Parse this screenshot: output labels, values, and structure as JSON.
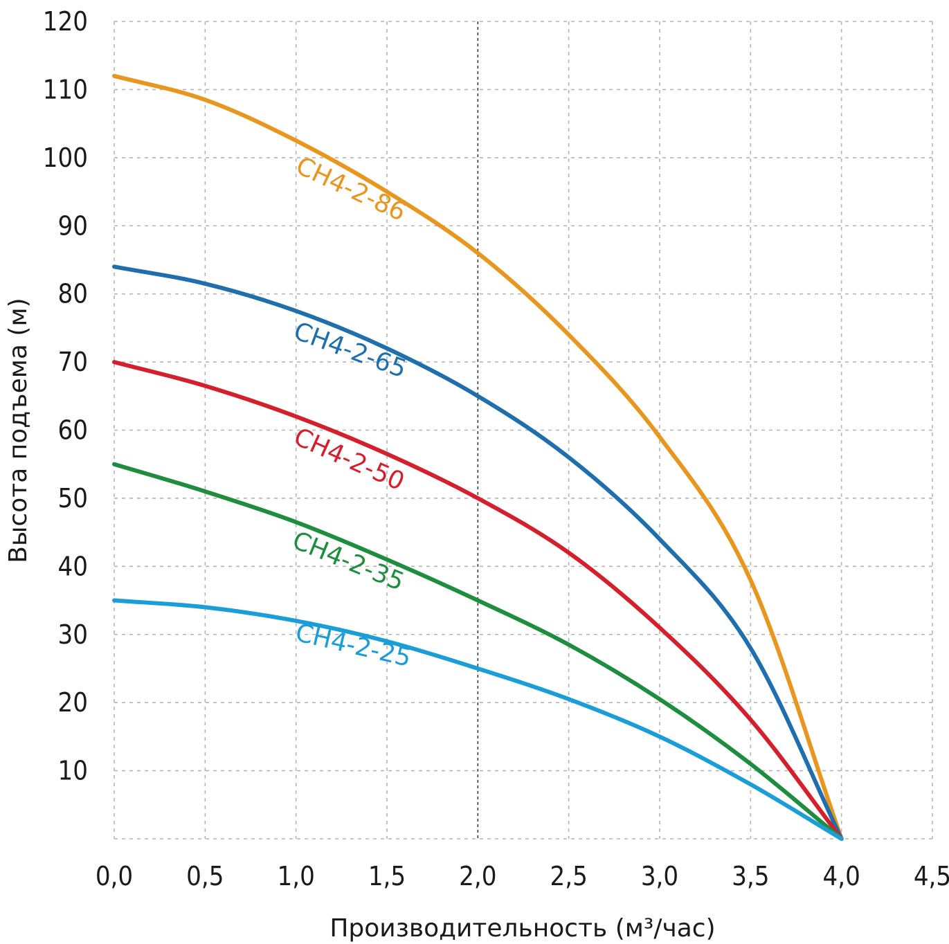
{
  "chart_data": {
    "type": "line",
    "xlabel": "Производительность (м³/час)",
    "ylabel": "Высота подъема (м)",
    "xlim": [
      0,
      4.5
    ],
    "ylim": [
      0,
      120
    ],
    "x_ticks": [
      "0,0",
      "0,5",
      "1,0",
      "1,5",
      "2,0",
      "2,5",
      "3,0",
      "3,5",
      "4,0",
      "4,5"
    ],
    "x_tick_values": [
      0,
      0.5,
      1,
      1.5,
      2,
      2.5,
      3,
      3.5,
      4,
      4.5
    ],
    "y_ticks": [
      "10",
      "20",
      "30",
      "40",
      "50",
      "60",
      "70",
      "80",
      "90",
      "100",
      "110",
      "120"
    ],
    "y_tick_values": [
      10,
      20,
      30,
      40,
      50,
      60,
      70,
      80,
      90,
      100,
      110,
      120
    ],
    "grid": true,
    "highlighted_x": 2,
    "x": [
      0,
      0.5,
      1.0,
      1.5,
      2.0,
      2.5,
      3.0,
      3.5,
      4.0
    ],
    "series": [
      {
        "name": "CH4-2-86",
        "color": "#e8961e",
        "values": [
          112,
          108.5,
          102.5,
          95,
          86,
          74,
          59,
          38,
          0
        ]
      },
      {
        "name": "CH4-2-65",
        "color": "#1f6fae",
        "values": [
          84,
          81.5,
          77.5,
          72,
          65,
          56,
          44,
          28,
          0
        ]
      },
      {
        "name": "CH4-2-50",
        "color": "#d3202c",
        "values": [
          70,
          66.5,
          62,
          56.5,
          50,
          42,
          31,
          17.5,
          0
        ]
      },
      {
        "name": "CH4-2-35",
        "color": "#1e8e3e",
        "values": [
          55,
          51,
          46.5,
          41,
          35,
          28.5,
          20.5,
          11,
          0
        ]
      },
      {
        "name": "CH4-2-25",
        "color": "#1b9ed8",
        "values": [
          35,
          34,
          32,
          29,
          25,
          20.5,
          15,
          8,
          0
        ]
      }
    ]
  }
}
